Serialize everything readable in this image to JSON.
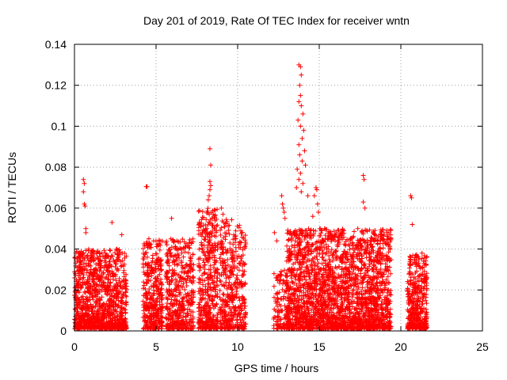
{
  "chart_data": {
    "type": "scatter",
    "title": "Day 201 of 2019, Rate Of TEC Index for receiver wntn",
    "xlabel": "GPS time / hours",
    "ylabel": "ROTI / TECUs",
    "xlim": [
      0,
      25
    ],
    "ylim": [
      0,
      0.14
    ],
    "x_ticks": [
      0,
      5,
      10,
      15,
      20,
      25
    ],
    "x_tick_labels": [
      "0",
      "5",
      "10",
      "15",
      "20",
      "25"
    ],
    "y_ticks": [
      0,
      0.02,
      0.04,
      0.06,
      0.08,
      0.1,
      0.12,
      0.14
    ],
    "y_tick_labels": [
      "0",
      "0.02",
      "0.04",
      "0.06",
      "0.08",
      "0.1",
      "0.12",
      "0.14"
    ],
    "grid": true,
    "marker": "+",
    "marker_color": "#ff0000",
    "series": [
      {
        "name": "ROTI",
        "clusters": [
          {
            "x_range": [
              0.0,
              3.2
            ],
            "count": 1100,
            "y_max": 0.04
          },
          {
            "x_range": [
              4.2,
              5.4
            ],
            "count": 380,
            "y_max": 0.045
          },
          {
            "x_range": [
              5.6,
              7.3
            ],
            "count": 460,
            "y_max": 0.045
          },
          {
            "x_range": [
              7.6,
              8.8
            ],
            "count": 420,
            "y_max": 0.06
          },
          {
            "x_range": [
              8.9,
              10.5
            ],
            "count": 420,
            "y_max": 0.055
          },
          {
            "x_range": [
              12.2,
              13.0
            ],
            "count": 110,
            "y_max": 0.03
          },
          {
            "x_range": [
              13.0,
              19.4
            ],
            "count": 2400,
            "y_max": 0.05
          },
          {
            "x_range": [
              20.4,
              21.6
            ],
            "count": 400,
            "y_max": 0.038
          }
        ],
        "peaks": [
          {
            "x": 0.55,
            "y": 0.074
          },
          {
            "x": 0.6,
            "y": 0.072
          },
          {
            "x": 0.55,
            "y": 0.068
          },
          {
            "x": 0.6,
            "y": 0.062
          },
          {
            "x": 0.65,
            "y": 0.061
          },
          {
            "x": 0.7,
            "y": 0.05
          },
          {
            "x": 0.7,
            "y": 0.048
          },
          {
            "x": 2.3,
            "y": 0.053
          },
          {
            "x": 2.9,
            "y": 0.047
          },
          {
            "x": 4.4,
            "y": 0.0705
          },
          {
            "x": 4.45,
            "y": 0.0705
          },
          {
            "x": 5.95,
            "y": 0.055
          },
          {
            "x": 8.3,
            "y": 0.089
          },
          {
            "x": 8.35,
            "y": 0.081
          },
          {
            "x": 8.3,
            "y": 0.073
          },
          {
            "x": 8.35,
            "y": 0.071
          },
          {
            "x": 8.3,
            "y": 0.069
          },
          {
            "x": 8.25,
            "y": 0.066
          },
          {
            "x": 8.2,
            "y": 0.064
          },
          {
            "x": 9.0,
            "y": 0.06
          },
          {
            "x": 9.1,
            "y": 0.057
          },
          {
            "x": 12.25,
            "y": 0.048
          },
          {
            "x": 12.4,
            "y": 0.044
          },
          {
            "x": 12.7,
            "y": 0.066
          },
          {
            "x": 12.75,
            "y": 0.062
          },
          {
            "x": 12.8,
            "y": 0.06
          },
          {
            "x": 12.85,
            "y": 0.058
          },
          {
            "x": 12.9,
            "y": 0.055
          },
          {
            "x": 13.75,
            "y": 0.13
          },
          {
            "x": 13.85,
            "y": 0.129
          },
          {
            "x": 13.9,
            "y": 0.125
          },
          {
            "x": 13.8,
            "y": 0.12
          },
          {
            "x": 13.85,
            "y": 0.115
          },
          {
            "x": 13.75,
            "y": 0.112
          },
          {
            "x": 13.9,
            "y": 0.11
          },
          {
            "x": 14.0,
            "y": 0.106
          },
          {
            "x": 13.7,
            "y": 0.103
          },
          {
            "x": 13.85,
            "y": 0.1
          },
          {
            "x": 14.05,
            "y": 0.098
          },
          {
            "x": 13.95,
            "y": 0.094
          },
          {
            "x": 13.75,
            "y": 0.091
          },
          {
            "x": 14.1,
            "y": 0.088
          },
          {
            "x": 13.8,
            "y": 0.086
          },
          {
            "x": 13.95,
            "y": 0.083
          },
          {
            "x": 14.15,
            "y": 0.081
          },
          {
            "x": 13.65,
            "y": 0.079
          },
          {
            "x": 13.85,
            "y": 0.077
          },
          {
            "x": 13.75,
            "y": 0.074
          },
          {
            "x": 14.0,
            "y": 0.072
          },
          {
            "x": 13.6,
            "y": 0.07
          },
          {
            "x": 13.9,
            "y": 0.068
          },
          {
            "x": 14.3,
            "y": 0.066
          },
          {
            "x": 14.8,
            "y": 0.07
          },
          {
            "x": 14.85,
            "y": 0.069
          },
          {
            "x": 14.7,
            "y": 0.066
          },
          {
            "x": 14.9,
            "y": 0.062
          },
          {
            "x": 14.95,
            "y": 0.058
          },
          {
            "x": 14.6,
            "y": 0.056
          },
          {
            "x": 17.7,
            "y": 0.076
          },
          {
            "x": 17.75,
            "y": 0.074
          },
          {
            "x": 17.7,
            "y": 0.063
          },
          {
            "x": 17.8,
            "y": 0.06
          },
          {
            "x": 18.3,
            "y": 0.048
          },
          {
            "x": 18.4,
            "y": 0.047
          },
          {
            "x": 20.6,
            "y": 0.066
          },
          {
            "x": 20.65,
            "y": 0.065
          },
          {
            "x": 20.7,
            "y": 0.052
          }
        ]
      }
    ]
  }
}
